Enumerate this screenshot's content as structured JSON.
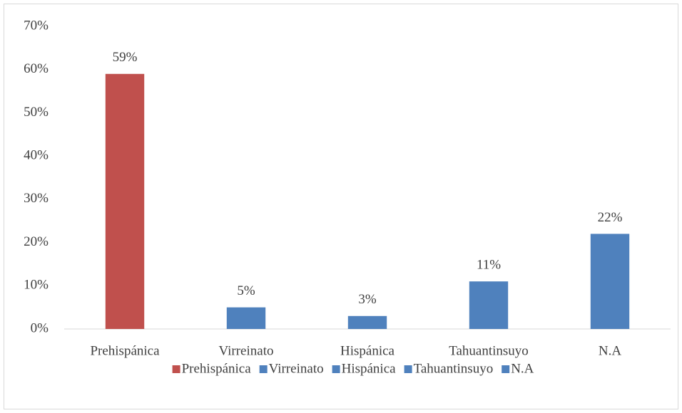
{
  "chart_data": {
    "type": "bar",
    "categories": [
      "Prehispánica",
      "Virreinato",
      "Hispánica",
      "Tahuantinsuyo",
      "N.A"
    ],
    "values": [
      59,
      5,
      3,
      11,
      22
    ],
    "value_labels": [
      "59%",
      "5%",
      "3%",
      "11%",
      "22%"
    ],
    "colors": [
      "#c0504d",
      "#4f81bd",
      "#4f81bd",
      "#4f81bd",
      "#4f81bd"
    ],
    "ylim": [
      0,
      70
    ],
    "yticks": [
      {
        "value": 0,
        "label": "0%"
      },
      {
        "value": 10,
        "label": "10%"
      },
      {
        "value": 20,
        "label": "20%"
      },
      {
        "value": 30,
        "label": "30%"
      },
      {
        "value": 40,
        "label": "40%"
      },
      {
        "value": 50,
        "label": "50%"
      },
      {
        "value": 60,
        "label": "60%"
      },
      {
        "value": 70,
        "label": "70%"
      }
    ],
    "grid": false,
    "legend": "bottom"
  }
}
